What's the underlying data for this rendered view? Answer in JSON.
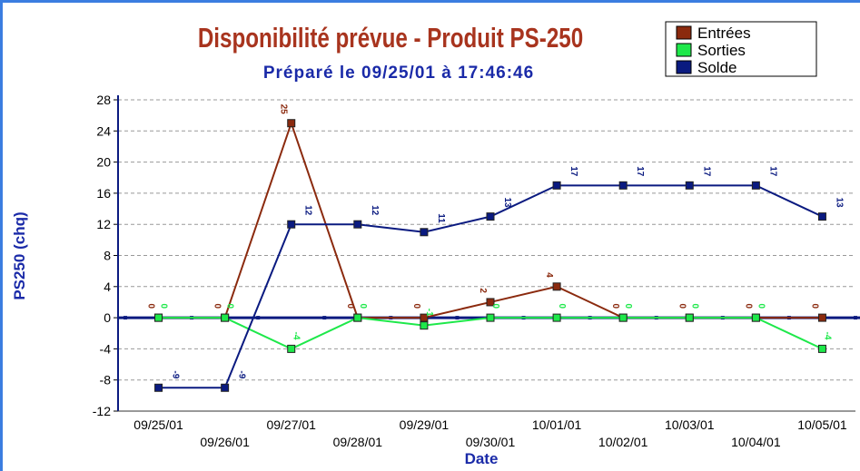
{
  "chart_data": {
    "type": "line",
    "title": "Disponibilité prévue - Produit PS-250",
    "subtitle": "Préparé le 09/25/01 à 17:46:46",
    "y_label": "PS250 (chq)",
    "x_label": "Date",
    "categories": [
      "09/25/01",
      "09/26/01",
      "09/27/01",
      "09/28/01",
      "09/29/01",
      "09/30/01",
      "10/01/01",
      "10/02/01",
      "10/03/01",
      "10/04/01",
      "10/05/01"
    ],
    "series": [
      {
        "name": "Entrées",
        "color": "#8b2a0e",
        "values": [
          0,
          0,
          25,
          0,
          0,
          2,
          4,
          0,
          0,
          0,
          0
        ]
      },
      {
        "name": "Sorties",
        "color": "#1ee84a",
        "values": [
          0,
          0,
          -4,
          0,
          -1,
          0,
          0,
          0,
          0,
          0,
          -4
        ]
      },
      {
        "name": "Solde",
        "color": "#0a1a80",
        "values": [
          -9,
          -9,
          12,
          12,
          11,
          13,
          17,
          17,
          17,
          17,
          13
        ]
      }
    ],
    "ylim": [
      -12,
      28
    ],
    "yticks": [
      -12,
      -8,
      -4,
      0,
      4,
      8,
      12,
      16,
      20,
      24,
      28
    ],
    "grid": true,
    "legend": "top-right",
    "data_labels": true
  }
}
